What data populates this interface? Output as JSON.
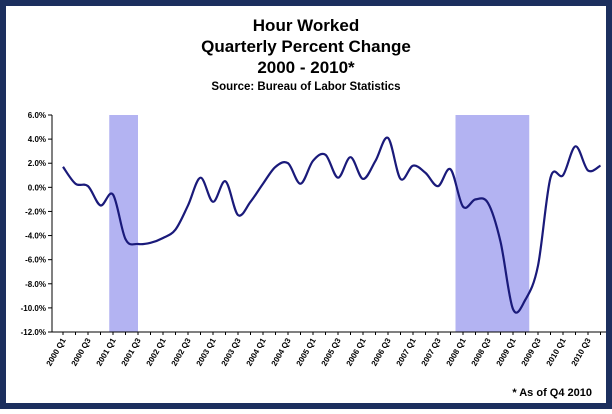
{
  "chart_data": {
    "type": "line",
    "title": [
      "Hour Worked",
      "Quarterly Percent Change",
      "2000 - 2010*"
    ],
    "subtitle": "Source: Bureau of Labor Statistics",
    "footnote": "* As of Q4 2010",
    "categories": [
      "2000 Q1",
      null,
      "2000 Q3",
      null,
      "2001 Q1",
      null,
      "2001 Q3",
      null,
      "2002 Q1",
      null,
      "2002 Q3",
      null,
      "2003 Q1",
      null,
      "2003 Q3",
      null,
      "2004 Q1",
      null,
      "2004 Q3",
      null,
      "2005 Q1",
      null,
      "2005 Q3",
      null,
      "2006 Q1",
      null,
      "2006 Q3",
      null,
      "2007 Q1",
      null,
      "2007 Q3",
      null,
      "2008 Q1",
      null,
      "2008 Q3",
      null,
      "2009 Q1",
      null,
      "2009 Q3",
      null,
      "2010 Q1",
      null,
      "2010 Q3",
      null
    ],
    "series": [
      {
        "name": "Hours worked",
        "color": "#1a1a7a",
        "values": [
          1.7,
          0.3,
          0.1,
          -1.5,
          -0.6,
          -4.3,
          -4.7,
          -4.6,
          -4.2,
          -3.5,
          -1.5,
          0.8,
          -1.2,
          0.5,
          -2.3,
          -1.2,
          0.3,
          1.7,
          2.0,
          0.3,
          2.2,
          2.7,
          0.8,
          2.5,
          0.7,
          2.2,
          4.1,
          0.7,
          1.8,
          1.2,
          0.1,
          1.5,
          -1.6,
          -1.0,
          -1.3,
          -4.5,
          -10.1,
          -9.3,
          -6.5,
          0.8,
          1.0,
          3.4,
          1.4,
          1.8
        ]
      }
    ],
    "shaded_periods": [
      [
        3.7,
        6.0
      ],
      [
        31.4,
        37.3
      ]
    ],
    "shade_color": "#9999ee",
    "ylim": [
      -12,
      6
    ],
    "yticks": [
      {
        "value": -12,
        "label": "-12.0%"
      },
      {
        "value": -10,
        "label": "-10.0%"
      },
      {
        "value": -8,
        "label": "-8.0%"
      },
      {
        "value": -6,
        "label": "-6.0%"
      },
      {
        "value": -4,
        "label": "-4.0%"
      },
      {
        "value": -2,
        "label": "-2.0%"
      },
      {
        "value": 0,
        "label": "0.0%"
      },
      {
        "value": 2,
        "label": "2.0%"
      },
      {
        "value": 4,
        "label": "4.0%"
      },
      {
        "value": 6,
        "label": "6.0%"
      }
    ],
    "grid": false
  }
}
